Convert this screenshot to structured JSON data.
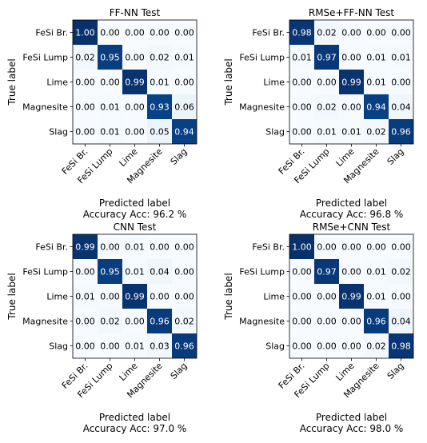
{
  "chart_data": [
    {
      "type": "heatmap",
      "title": "FF-NN Test",
      "xlabel": "Predicted label",
      "ylabel": "True label",
      "accuracy_label": "Accuracy Acc: 96.2 %",
      "categories": [
        "FeSi Br.",
        "FeSi Lump",
        "Lime",
        "Magnesite",
        "Slag"
      ],
      "matrix": [
        [
          1.0,
          0.0,
          0.0,
          0.0,
          0.0
        ],
        [
          0.02,
          0.95,
          0.0,
          0.02,
          0.01
        ],
        [
          0.0,
          0.0,
          0.99,
          0.01,
          0.0
        ],
        [
          0.0,
          0.01,
          0.0,
          0.93,
          0.06
        ],
        [
          0.0,
          0.01,
          0.0,
          0.05,
          0.94
        ]
      ],
      "colormap": "Blues",
      "range": [
        0,
        1
      ]
    },
    {
      "type": "heatmap",
      "title": "RMSe+FF-NN Test",
      "xlabel": "Predicted label",
      "ylabel": "True label",
      "accuracy_label": "Accuracy Acc: 96.8 %",
      "categories": [
        "FeSi Br.",
        "FeSi Lump",
        "Lime",
        "Magnesite",
        "Slag"
      ],
      "matrix": [
        [
          0.98,
          0.02,
          0.0,
          0.0,
          0.0
        ],
        [
          0.01,
          0.97,
          0.0,
          0.01,
          0.01
        ],
        [
          0.0,
          0.0,
          0.99,
          0.01,
          0.0
        ],
        [
          0.0,
          0.02,
          0.0,
          0.94,
          0.04
        ],
        [
          0.0,
          0.01,
          0.01,
          0.02,
          0.96
        ]
      ],
      "colormap": "Blues",
      "range": [
        0,
        1
      ]
    },
    {
      "type": "heatmap",
      "title": "CNN Test",
      "xlabel": "Predicted label",
      "ylabel": "True label",
      "accuracy_label": "Accuracy Acc: 97.0 %",
      "categories": [
        "FeSi Br.",
        "FeSi Lump",
        "Lime",
        "Magnesite",
        "Slag"
      ],
      "matrix": [
        [
          0.99,
          0.0,
          0.01,
          0.0,
          0.0
        ],
        [
          0.0,
          0.95,
          0.01,
          0.04,
          0.0
        ],
        [
          0.01,
          0.0,
          0.99,
          0.0,
          0.0
        ],
        [
          0.0,
          0.02,
          0.0,
          0.96,
          0.02
        ],
        [
          0.0,
          0.0,
          0.01,
          0.03,
          0.96
        ]
      ],
      "colormap": "Blues",
      "range": [
        0,
        1
      ]
    },
    {
      "type": "heatmap",
      "title": "RMSe+CNN Test",
      "xlabel": "Predicted label",
      "ylabel": "True label",
      "accuracy_label": "Accuracy Acc: 98.0 %",
      "categories": [
        "FeSi Br.",
        "FeSi Lump",
        "Lime",
        "Magnesite",
        "Slag"
      ],
      "matrix": [
        [
          1.0,
          0.0,
          0.0,
          0.0,
          0.0
        ],
        [
          0.0,
          0.97,
          0.0,
          0.01,
          0.02
        ],
        [
          0.0,
          0.0,
          0.99,
          0.01,
          0.0
        ],
        [
          0.0,
          0.0,
          0.0,
          0.96,
          0.04
        ],
        [
          0.0,
          0.0,
          0.0,
          0.02,
          0.98
        ]
      ],
      "colormap": "Blues",
      "range": [
        0,
        1
      ]
    }
  ]
}
